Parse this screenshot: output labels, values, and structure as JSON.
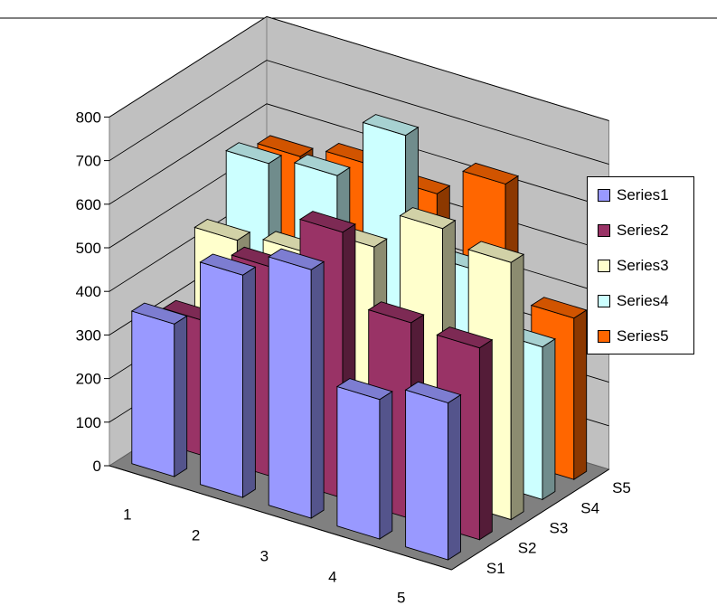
{
  "chart_data": {
    "type": "bar",
    "variant": "3d-column",
    "title": "",
    "xlabel": "",
    "ylabel": "",
    "categories": [
      "1",
      "2",
      "3",
      "4",
      "5"
    ],
    "depth_labels": [
      "S1",
      "S2",
      "S3",
      "S4",
      "S5"
    ],
    "y_ticks": [
      "0",
      "100",
      "200",
      "300",
      "400",
      "500",
      "600",
      "700",
      "800"
    ],
    "ylim": [
      0,
      800
    ],
    "grid": true,
    "legend_position": "right",
    "series": [
      {
        "name": "Series1",
        "color": "#9999ff",
        "values": [
          350,
          510,
          570,
          320,
          360
        ]
      },
      {
        "name": "Series2",
        "color": "#993366",
        "values": [
          310,
          480,
          610,
          450,
          440
        ]
      },
      {
        "name": "Series3",
        "color": "#ffffcc",
        "values": [
          450,
          470,
          530,
          620,
          590
        ]
      },
      {
        "name": "Series4",
        "color": "#ccffff",
        "values": [
          580,
          600,
          740,
          480,
          350
        ]
      },
      {
        "name": "Series5",
        "color": "#ff6600",
        "values": [
          550,
          580,
          560,
          630,
          370
        ]
      }
    ]
  }
}
